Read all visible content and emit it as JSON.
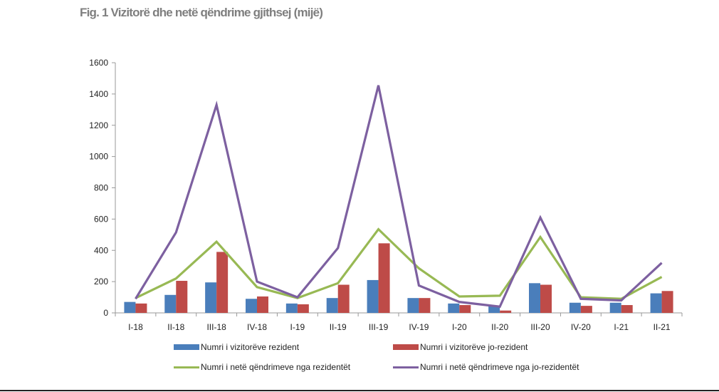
{
  "chart_data": {
    "type": "bar",
    "title": "Fig. 1 Vizitorë dhe netë qëndrime gjithsej (mijë)",
    "xlabel": "",
    "ylabel": "",
    "ylim": [
      0,
      1600
    ],
    "yticks": [
      0,
      200,
      400,
      600,
      800,
      1000,
      1200,
      1400,
      1600
    ],
    "grid": false,
    "legend_position": "bottom",
    "categories": [
      "I-18",
      "II-18",
      "III-18",
      "IV-18",
      "I-19",
      "II-19",
      "III-19",
      "IV-19",
      "I-20",
      "II-20",
      "III-20",
      "IV-20",
      "I-21",
      "II-21"
    ],
    "series": [
      {
        "name": "Numri i vizitorëve rezident",
        "type": "bar",
        "color": "#4a7ebb",
        "values": [
          70,
          115,
          195,
          90,
          60,
          95,
          210,
          95,
          60,
          45,
          190,
          65,
          65,
          125
        ]
      },
      {
        "name": "Numri i vizitorëve jo-rezident",
        "type": "bar",
        "color": "#be4b48",
        "values": [
          60,
          205,
          390,
          105,
          55,
          180,
          445,
          95,
          50,
          15,
          180,
          45,
          50,
          140
        ]
      },
      {
        "name": "Numri i netë qëndrimeve nga rezidentët",
        "type": "line",
        "color": "#98b954",
        "values": [
          95,
          220,
          455,
          165,
          95,
          190,
          535,
          285,
          105,
          110,
          485,
          100,
          90,
          230
        ]
      },
      {
        "name": "Numri i netë qëndrimeve nga jo-rezidentët",
        "type": "line",
        "color": "#7d60a0",
        "values": [
          90,
          515,
          1330,
          200,
          100,
          415,
          1455,
          175,
          70,
          40,
          610,
          90,
          80,
          320
        ]
      }
    ]
  }
}
